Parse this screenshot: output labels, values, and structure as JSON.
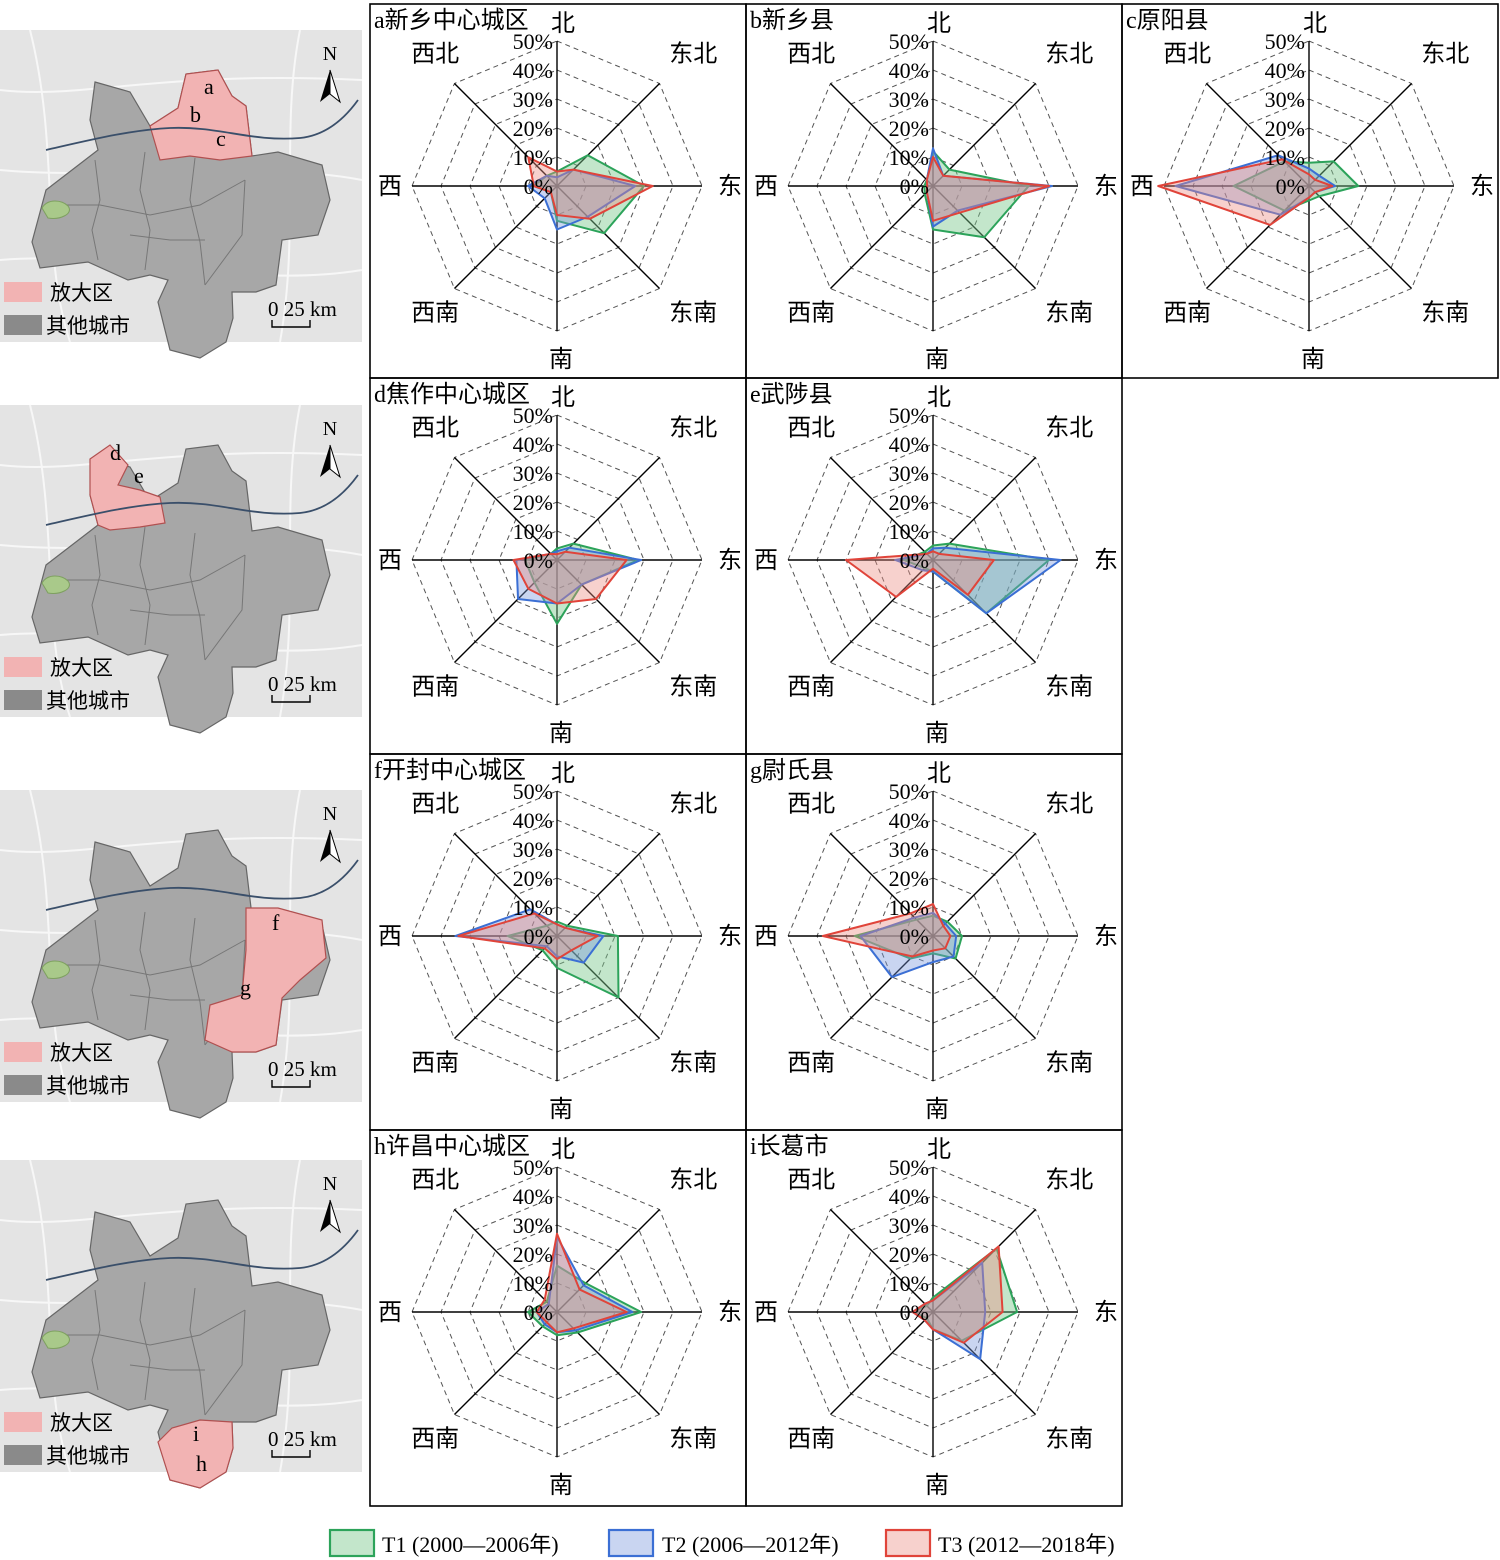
{
  "colors": {
    "T1": "#2ca35a",
    "T1_fill": "rgba(122,199,140,0.45)",
    "T2": "#3b6fd4",
    "T2_fill": "rgba(120,150,220,0.40)",
    "T3": "#e0443a",
    "T3_fill": "rgba(236,140,130,0.40)",
    "highlight": "#f2b3b3",
    "other_city": "#a7a7a7",
    "map_bg": "#e4e4e4"
  },
  "legend": [
    {
      "key": "T1",
      "label": "T1 (2000—2006年)"
    },
    {
      "key": "T2",
      "label": "T2 (2006—2012年)"
    },
    {
      "key": "T3",
      "label": "T3 (2012—2018年)"
    }
  ],
  "maps": [
    {
      "legend_highlight": "放大区",
      "legend_other": "其他城市",
      "scale": "0  25 km",
      "north": "N",
      "labels": [
        "a",
        "b",
        "c"
      ]
    },
    {
      "legend_highlight": "放大区",
      "legend_other": "其他城市",
      "scale": "0  25 km",
      "north": "N",
      "labels": [
        "d",
        "e"
      ]
    },
    {
      "legend_highlight": "放大区",
      "legend_other": "其他城市",
      "scale": "0  25 km",
      "north": "N",
      "labels": [
        "f",
        "g"
      ]
    },
    {
      "legend_highlight": "放大区",
      "legend_other": "其他城市",
      "scale": "0  25 km",
      "north": "N",
      "labels": [
        "i",
        "h"
      ]
    }
  ],
  "chart_data": [
    {
      "type": "radar",
      "title": "a新乡中心城区",
      "directions": [
        "北",
        "东北",
        "东",
        "东南",
        "南",
        "西南",
        "西",
        "西北"
      ],
      "ticks": [
        "0%",
        "10%",
        "20%",
        "30%",
        "40%",
        "50%"
      ],
      "rmax": 50,
      "series": [
        {
          "key": "T1",
          "values": [
            5,
            15,
            30,
            23,
            12,
            3,
            8,
            5
          ]
        },
        {
          "key": "T2",
          "values": [
            3,
            8,
            27,
            15,
            15,
            6,
            10,
            5
          ]
        },
        {
          "key": "T3",
          "values": [
            5,
            8,
            33,
            16,
            10,
            3,
            8,
            14
          ]
        }
      ]
    },
    {
      "type": "radar",
      "title": "b新乡县",
      "directions": [
        "北",
        "东北",
        "东",
        "东南",
        "南",
        "西南",
        "西",
        "西北"
      ],
      "ticks": [
        "0%",
        "10%",
        "20%",
        "30%",
        "40%",
        "50%"
      ],
      "rmax": 50,
      "series": [
        {
          "key": "T1",
          "values": [
            12,
            8,
            33,
            25,
            15,
            4,
            3,
            3
          ]
        },
        {
          "key": "T2",
          "values": [
            13,
            5,
            41,
            12,
            14,
            3,
            2,
            3
          ]
        },
        {
          "key": "T3",
          "values": [
            10,
            5,
            40,
            13,
            12,
            3,
            2,
            3
          ]
        }
      ]
    },
    {
      "type": "radar",
      "title": "c原阳县",
      "directions": [
        "北",
        "东北",
        "东",
        "东南",
        "南",
        "西南",
        "西",
        "西北"
      ],
      "ticks": [
        "0%",
        "10%",
        "20%",
        "30%",
        "40%",
        "50%"
      ],
      "rmax": 50,
      "series": [
        {
          "key": "T1",
          "values": [
            8,
            12,
            17,
            5,
            5,
            12,
            26,
            12
          ]
        },
        {
          "key": "T2",
          "values": [
            6,
            5,
            9,
            3,
            4,
            14,
            46,
            15
          ]
        },
        {
          "key": "T3",
          "values": [
            4,
            3,
            8,
            3,
            4,
            19,
            52,
            13
          ]
        }
      ]
    },
    {
      "type": "radar",
      "title": "d焦作中心城区",
      "directions": [
        "北",
        "东北",
        "东",
        "东南",
        "南",
        "西南",
        "西",
        "西北"
      ],
      "ticks": [
        "0%",
        "10%",
        "20%",
        "30%",
        "40%",
        "50%"
      ],
      "rmax": 50,
      "series": [
        {
          "key": "T1",
          "values": [
            4,
            8,
            28,
            12,
            22,
            11,
            11,
            3
          ]
        },
        {
          "key": "T2",
          "values": [
            3,
            6,
            29,
            12,
            15,
            19,
            14,
            3
          ]
        },
        {
          "key": "T3",
          "values": [
            2,
            4,
            24,
            19,
            15,
            14,
            15,
            3
          ]
        }
      ]
    },
    {
      "type": "radar",
      "title": "e武陟县",
      "directions": [
        "北",
        "东北",
        "东",
        "东南",
        "南",
        "西南",
        "西",
        "西北"
      ],
      "ticks": [
        "0%",
        "10%",
        "20%",
        "30%",
        "40%",
        "50%"
      ],
      "rmax": 50,
      "series": [
        {
          "key": "T1",
          "values": [
            5,
            8,
            40,
            26,
            4,
            4,
            10,
            4
          ]
        },
        {
          "key": "T2",
          "values": [
            4,
            6,
            44,
            26,
            4,
            5,
            13,
            3
          ]
        },
        {
          "key": "T3",
          "values": [
            3,
            3,
            21,
            17,
            3,
            18,
            30,
            3
          ]
        }
      ]
    },
    {
      "type": "radar",
      "title": "f开封中心城区",
      "directions": [
        "北",
        "东北",
        "东",
        "东南",
        "南",
        "西南",
        "西",
        "西北"
      ],
      "ticks": [
        "0%",
        "10%",
        "20%",
        "30%",
        "40%",
        "50%"
      ],
      "rmax": 50,
      "series": [
        {
          "key": "T1",
          "values": [
            5,
            5,
            21,
            30,
            11,
            7,
            17,
            5
          ]
        },
        {
          "key": "T2",
          "values": [
            4,
            4,
            16,
            13,
            7,
            5,
            35,
            13
          ]
        },
        {
          "key": "T3",
          "values": [
            4,
            4,
            14,
            7,
            8,
            6,
            34,
            11
          ]
        }
      ]
    },
    {
      "type": "radar",
      "title": "g尉氏县",
      "directions": [
        "北",
        "东北",
        "东",
        "东南",
        "南",
        "西南",
        "西",
        "西北"
      ],
      "ticks": [
        "0%",
        "10%",
        "20%",
        "30%",
        "40%",
        "50%"
      ],
      "rmax": 50,
      "series": [
        {
          "key": "T1",
          "values": [
            7,
            7,
            10,
            11,
            6,
            11,
            27,
            8
          ]
        },
        {
          "key": "T2",
          "values": [
            8,
            6,
            8,
            10,
            9,
            20,
            25,
            9
          ]
        },
        {
          "key": "T3",
          "values": [
            11,
            5,
            6,
            6,
            5,
            10,
            38,
            11
          ]
        }
      ]
    },
    {
      "type": "radar",
      "title": "h许昌中心城区",
      "directions": [
        "北",
        "东北",
        "东",
        "东南",
        "南",
        "西南",
        "西",
        "西北"
      ],
      "ticks": [
        "0%",
        "10%",
        "20%",
        "30%",
        "40%",
        "50%"
      ],
      "rmax": 50,
      "series": [
        {
          "key": "T1",
          "values": [
            16,
            14,
            29,
            10,
            8,
            7,
            10,
            5
          ]
        },
        {
          "key": "T2",
          "values": [
            26,
            13,
            26,
            9,
            7,
            6,
            7,
            4
          ]
        },
        {
          "key": "T3",
          "values": [
            27,
            11,
            24,
            8,
            7,
            5,
            7,
            6
          ]
        }
      ]
    },
    {
      "type": "radar",
      "title": "i长葛市",
      "directions": [
        "北",
        "东北",
        "东",
        "东南",
        "南",
        "西南",
        "西",
        "西北"
      ],
      "ticks": [
        "0%",
        "10%",
        "20%",
        "30%",
        "40%",
        "50%"
      ],
      "rmax": 50,
      "series": [
        {
          "key": "T1",
          "values": [
            5,
            31,
            29,
            14,
            6,
            3,
            7,
            3
          ]
        },
        {
          "key": "T2",
          "values": [
            4,
            24,
            18,
            23,
            6,
            4,
            7,
            4
          ]
        },
        {
          "key": "T3",
          "values": [
            4,
            32,
            24,
            15,
            6,
            4,
            7,
            4
          ]
        }
      ]
    }
  ]
}
